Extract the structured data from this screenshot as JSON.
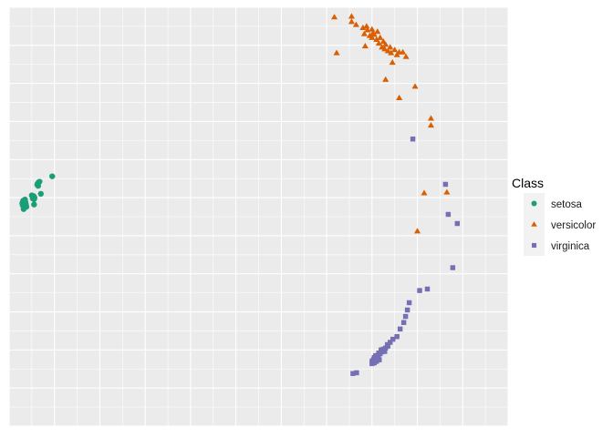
{
  "chart_data": {
    "type": "scatter",
    "title": "",
    "xlabel": "",
    "ylabel": "",
    "grid": true,
    "axis_ticks_shown": false,
    "xlim": [
      -1.0,
      10.0
    ],
    "ylim": [
      -1.0,
      10.0
    ],
    "legend": {
      "title": "Class",
      "placement": "right"
    },
    "series": [
      {
        "name": "setosa",
        "color": "#1B9E77",
        "shape": "circle",
        "points": [
          [
            -0.7,
            4.8
          ],
          [
            -0.68,
            4.86
          ],
          [
            -0.66,
            4.78
          ],
          [
            -0.69,
            4.92
          ],
          [
            -0.64,
            4.88
          ],
          [
            -0.67,
            4.74
          ],
          [
            -0.63,
            4.82
          ],
          [
            -0.71,
            4.85
          ],
          [
            -0.65,
            4.95
          ],
          [
            -0.68,
            4.7
          ],
          [
            -0.66,
            4.9
          ],
          [
            -0.62,
            4.76
          ],
          [
            -0.7,
            4.88
          ],
          [
            -0.64,
            4.84
          ],
          [
            -0.48,
            4.98
          ],
          [
            -0.46,
            5.04
          ],
          [
            -0.44,
            5.0
          ],
          [
            -0.5,
            5.06
          ],
          [
            -0.45,
            4.96
          ],
          [
            -0.47,
            5.02
          ],
          [
            -0.38,
            5.34
          ],
          [
            -0.35,
            5.4
          ],
          [
            -0.37,
            5.37
          ],
          [
            -0.33,
            5.42
          ],
          [
            -0.36,
            5.31
          ],
          [
            -0.3,
            5.1
          ],
          [
            -0.45,
            4.82
          ],
          [
            -0.05,
            5.56
          ]
        ]
      },
      {
        "name": "versicolor",
        "color": "#D95F02",
        "shape": "triangle",
        "points": [
          [
            6.17,
            9.74
          ],
          [
            6.55,
            9.76
          ],
          [
            6.55,
            9.62
          ],
          [
            6.65,
            9.54
          ],
          [
            6.8,
            9.46
          ],
          [
            6.83,
            9.3
          ],
          [
            6.9,
            9.4
          ],
          [
            6.95,
            9.25
          ],
          [
            7.0,
            9.42
          ],
          [
            7.0,
            9.2
          ],
          [
            7.05,
            9.28
          ],
          [
            7.1,
            9.15
          ],
          [
            7.12,
            9.36
          ],
          [
            7.15,
            9.05
          ],
          [
            7.18,
            9.2
          ],
          [
            7.22,
            8.95
          ],
          [
            7.25,
            9.1
          ],
          [
            7.28,
            8.9
          ],
          [
            7.3,
            9.02
          ],
          [
            7.35,
            8.85
          ],
          [
            7.4,
            8.95
          ],
          [
            7.42,
            8.8
          ],
          [
            7.5,
            8.88
          ],
          [
            7.55,
            8.75
          ],
          [
            7.6,
            8.82
          ],
          [
            6.88,
            9.5
          ],
          [
            7.02,
            9.32
          ],
          [
            7.68,
            8.82
          ],
          [
            7.75,
            8.7
          ],
          [
            6.85,
            8.98
          ],
          [
            7.45,
            8.55
          ],
          [
            7.3,
            8.1
          ],
          [
            7.6,
            7.62
          ],
          [
            7.95,
            7.92
          ],
          [
            8.3,
            6.9
          ],
          [
            8.3,
            7.08
          ],
          [
            8.65,
            5.14
          ],
          [
            8.0,
            4.12
          ],
          [
            8.15,
            5.12
          ],
          [
            6.22,
            8.8
          ]
        ]
      },
      {
        "name": "virginica",
        "color": "#7570B3",
        "shape": "square",
        "points": [
          [
            7.9,
            6.54
          ],
          [
            8.62,
            5.35
          ],
          [
            8.68,
            4.56
          ],
          [
            8.88,
            4.32
          ],
          [
            8.78,
            3.16
          ],
          [
            8.05,
            2.56
          ],
          [
            8.22,
            2.6
          ],
          [
            7.82,
            2.24
          ],
          [
            7.78,
            2.05
          ],
          [
            7.74,
            1.88
          ],
          [
            7.7,
            1.72
          ],
          [
            7.62,
            1.55
          ],
          [
            7.55,
            1.35
          ],
          [
            7.4,
            1.2
          ],
          [
            7.35,
            1.1
          ],
          [
            7.3,
            1.05
          ],
          [
            7.26,
            0.98
          ],
          [
            7.22,
            0.95
          ],
          [
            7.18,
            0.9
          ],
          [
            7.14,
            0.86
          ],
          [
            7.1,
            0.82
          ],
          [
            7.07,
            0.78
          ],
          [
            7.04,
            0.75
          ],
          [
            7.02,
            0.72
          ],
          [
            7.0,
            0.7
          ],
          [
            7.05,
            0.8
          ],
          [
            7.08,
            0.85
          ],
          [
            7.12,
            0.78
          ],
          [
            7.15,
            0.92
          ],
          [
            7.2,
            1.0
          ],
          [
            7.25,
            1.02
          ],
          [
            7.0,
            0.64
          ],
          [
            7.05,
            0.66
          ],
          [
            7.1,
            0.7
          ],
          [
            7.16,
            0.74
          ],
          [
            7.28,
            0.96
          ],
          [
            7.34,
            1.14
          ],
          [
            7.46,
            1.28
          ],
          [
            6.58,
            0.38
          ],
          [
            6.66,
            0.4
          ]
        ]
      }
    ]
  }
}
